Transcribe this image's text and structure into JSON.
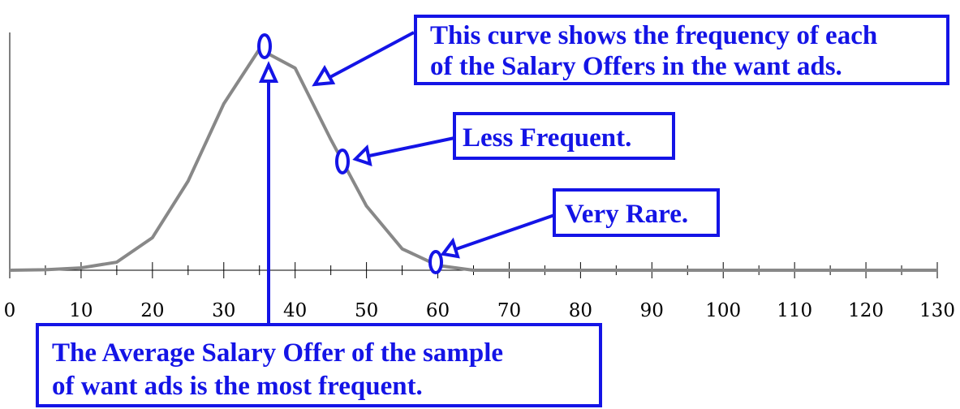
{
  "chart_data": {
    "type": "line",
    "x": [
      0,
      5,
      10,
      15,
      20,
      25,
      30,
      35,
      40,
      45,
      50,
      55,
      60,
      65,
      130
    ],
    "values": [
      0,
      0.2,
      1,
      3.4,
      13.7,
      37.5,
      70,
      93,
      85,
      55,
      27,
      9,
      2,
      0,
      0
    ],
    "color": "#888888",
    "xlim": [
      0,
      130
    ],
    "xticks": [
      0,
      10,
      20,
      30,
      40,
      50,
      60,
      70,
      80,
      90,
      100,
      110,
      120,
      130
    ],
    "xminorticks": [
      5,
      15,
      25,
      35,
      45,
      55,
      65,
      75,
      85,
      95,
      105,
      115,
      125
    ],
    "ylim": [
      0,
      100
    ],
    "annotations": [
      {
        "lines": [
          "This curve shows the frequency of each",
          "of the Salary Offers in the want ads."
        ]
      },
      {
        "lines": [
          "Less Frequent."
        ]
      },
      {
        "lines": [
          "Very Rare."
        ]
      },
      {
        "lines": [
          "The Average Salary Offer of the sample",
          "of want ads is the most frequent."
        ]
      }
    ]
  }
}
